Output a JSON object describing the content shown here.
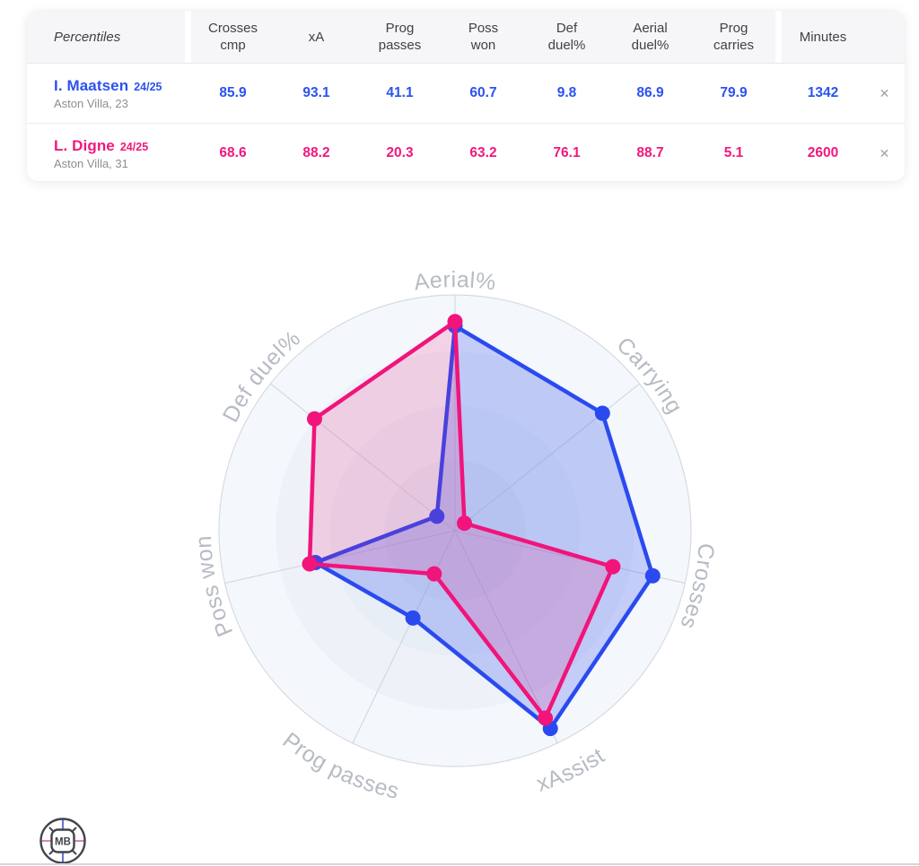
{
  "table": {
    "header": {
      "label_col": "Percentiles",
      "stat_cols": [
        "Crosses cmp",
        "xA",
        "Prog passes",
        "Poss won",
        "Def duel%",
        "Aerial duel%",
        "Prog carries"
      ],
      "minutes_col": "Minutes"
    },
    "rows": [
      {
        "name": "I. Maatsen",
        "season": "24/25",
        "sub": "Aston Villa, 23",
        "color": "#2b52ef",
        "values": [
          "85.9",
          "93.1",
          "41.1",
          "60.7",
          "9.8",
          "86.9",
          "79.9"
        ],
        "minutes": "1342",
        "close_label": "✕"
      },
      {
        "name": "L. Digne",
        "season": "24/25",
        "sub": "Aston Villa, 31",
        "color": "#f2177d",
        "values": [
          "68.6",
          "88.2",
          "20.3",
          "63.2",
          "76.1",
          "88.7",
          "5.1"
        ],
        "minutes": "2600",
        "close_label": "✕"
      }
    ]
  },
  "chart_data": {
    "type": "radar",
    "axes": [
      "Aerial%",
      "Carrying",
      "Crosses",
      "xAssist",
      "Prog passes",
      "Poss won",
      "Def duel%"
    ],
    "rmax": 100,
    "center": {
      "x": 507,
      "y": 592
    },
    "radius": 263,
    "grid_ring_fills": [
      "#f4f7fb",
      "#eef2f8",
      "#e8eef6",
      "#e2e9f2"
    ],
    "grid_stroke": "#d7dbe1",
    "spoke_stroke": "#cfd4db",
    "label_color": "#b7bbc4",
    "series": [
      {
        "name": "I. Maatsen",
        "color": "#2a4af0",
        "fill": "rgba(62,92,242,0.27)",
        "values": [
          86.9,
          79.9,
          85.9,
          93.1,
          41.1,
          60.7,
          9.8
        ]
      },
      {
        "name": "L. Digne",
        "color": "#f1147a",
        "fill": "rgba(241,20,118,0.16)",
        "values": [
          88.7,
          5.1,
          68.6,
          88.2,
          20.3,
          63.2,
          76.1
        ]
      }
    ]
  },
  "logo": {
    "text": "MB",
    "circle_color": "#42434b",
    "vline_color": "#6673d6",
    "hline_color": "#e27fb5"
  }
}
